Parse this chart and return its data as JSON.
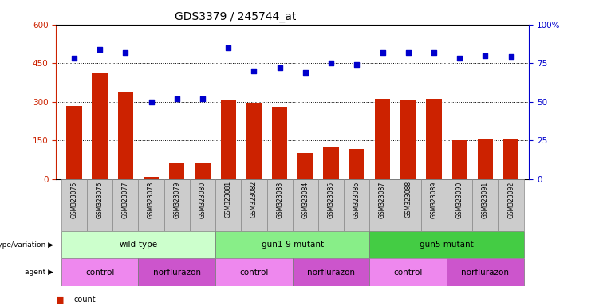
{
  "title": "GDS3379 / 245744_at",
  "samples": [
    "GSM323075",
    "GSM323076",
    "GSM323077",
    "GSM323078",
    "GSM323079",
    "GSM323080",
    "GSM323081",
    "GSM323082",
    "GSM323083",
    "GSM323084",
    "GSM323085",
    "GSM323086",
    "GSM323087",
    "GSM323088",
    "GSM323089",
    "GSM323090",
    "GSM323091",
    "GSM323092"
  ],
  "counts": [
    285,
    415,
    335,
    8,
    65,
    65,
    305,
    295,
    280,
    100,
    125,
    115,
    310,
    305,
    310,
    150,
    155,
    155
  ],
  "percentile": [
    78,
    84,
    82,
    50,
    52,
    52,
    85,
    70,
    72,
    69,
    75,
    74,
    82,
    82,
    82,
    78,
    80,
    79
  ],
  "ylim_left": [
    0,
    600
  ],
  "ylim_right": [
    0,
    100
  ],
  "yticks_left": [
    0,
    150,
    300,
    450,
    600
  ],
  "yticks_right": [
    0,
    25,
    50,
    75,
    100
  ],
  "bar_color": "#CC2200",
  "scatter_color": "#0000CC",
  "left_axis_color": "#CC2200",
  "right_axis_color": "#0000CC",
  "genotype_groups": [
    {
      "label": "wild-type",
      "start": 0,
      "end": 5,
      "color": "#CCFFCC"
    },
    {
      "label": "gun1-9 mutant",
      "start": 6,
      "end": 11,
      "color": "#88EE88"
    },
    {
      "label": "gun5 mutant",
      "start": 12,
      "end": 17,
      "color": "#44CC44"
    }
  ],
  "agent_groups": [
    {
      "label": "control",
      "start": 0,
      "end": 2,
      "color": "#EE88EE"
    },
    {
      "label": "norflurazon",
      "start": 3,
      "end": 5,
      "color": "#CC55CC"
    },
    {
      "label": "control",
      "start": 6,
      "end": 8,
      "color": "#EE88EE"
    },
    {
      "label": "norflurazon",
      "start": 9,
      "end": 11,
      "color": "#CC55CC"
    },
    {
      "label": "control",
      "start": 12,
      "end": 14,
      "color": "#EE88EE"
    },
    {
      "label": "norflurazon",
      "start": 15,
      "end": 17,
      "color": "#CC55CC"
    }
  ],
  "xlab_bg": "#CCCCCC",
  "xlab_edgecolor": "#888888",
  "fig_width": 7.41,
  "fig_height": 3.84,
  "dpi": 100
}
